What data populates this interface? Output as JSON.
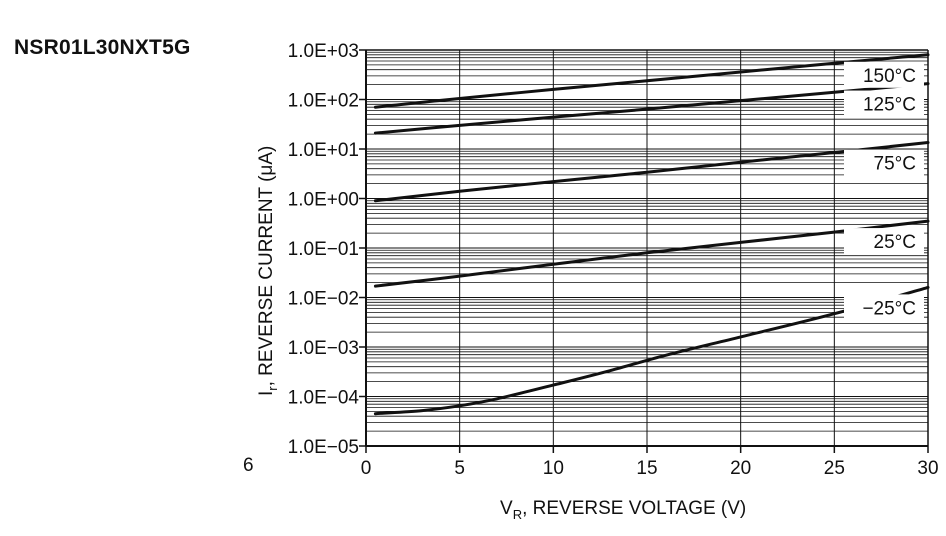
{
  "part_number": "NSR01L30NXT5G",
  "page_number": "6",
  "chart_data": {
    "type": "line",
    "title": "NSR01L30NXT5G",
    "xlabel_main": "V",
    "xlabel_sub": "R",
    "xlabel_rest": ", REVERSE VOLTAGE (V)",
    "ylabel_main": "I",
    "ylabel_sub": "r",
    "ylabel_rest": ", REVERSE CURRENT (μA)",
    "xlim": [
      0,
      30
    ],
    "ylim_log10": [
      -5,
      3
    ],
    "x_ticks": [
      0,
      5,
      10,
      15,
      20,
      25,
      30
    ],
    "x_tick_labels": [
      "0",
      "5",
      "10",
      "15",
      "20",
      "25",
      "30"
    ],
    "y_ticks_log10": [
      3,
      2,
      1,
      0,
      -1,
      -2,
      -3,
      -4,
      -5
    ],
    "y_tick_labels": [
      "1.0E+03",
      "1.0E+02",
      "1.0E+01",
      "1.0E+00",
      "1.0E−01",
      "1.0E−02",
      "1.0E−03",
      "1.0E−04",
      "1.0E−05"
    ],
    "grid": true,
    "series": [
      {
        "name": "150°C",
        "x": [
          0.5,
          5,
          10,
          15,
          20,
          25,
          30
        ],
        "y": [
          70,
          105,
          160,
          240,
          360,
          540,
          800
        ]
      },
      {
        "name": "125°C",
        "x": [
          0.5,
          5,
          10,
          15,
          20,
          25,
          30
        ],
        "y": [
          21,
          30,
          44,
          64,
          95,
          140,
          210
        ]
      },
      {
        "name": "75°C",
        "x": [
          0.5,
          5,
          10,
          15,
          20,
          25,
          30
        ],
        "y": [
          0.9,
          1.4,
          2.2,
          3.4,
          5.4,
          8.5,
          13.5
        ]
      },
      {
        "name": "25°C",
        "x": [
          0.5,
          5,
          10,
          15,
          20,
          25,
          30
        ],
        "y": [
          0.017,
          0.027,
          0.047,
          0.08,
          0.13,
          0.21,
          0.35
        ]
      },
      {
        "name": "−25°C",
        "x": [
          0.5,
          3,
          5,
          7,
          10,
          13,
          16,
          20,
          25,
          30
        ],
        "y": [
          4.5e-05,
          5.2e-05,
          6.5e-05,
          9e-05,
          0.00017,
          0.00033,
          0.00068,
          0.0016,
          0.0047,
          0.016
        ]
      }
    ],
    "label_positions": [
      "right",
      "right",
      "right",
      "right",
      "right"
    ]
  }
}
